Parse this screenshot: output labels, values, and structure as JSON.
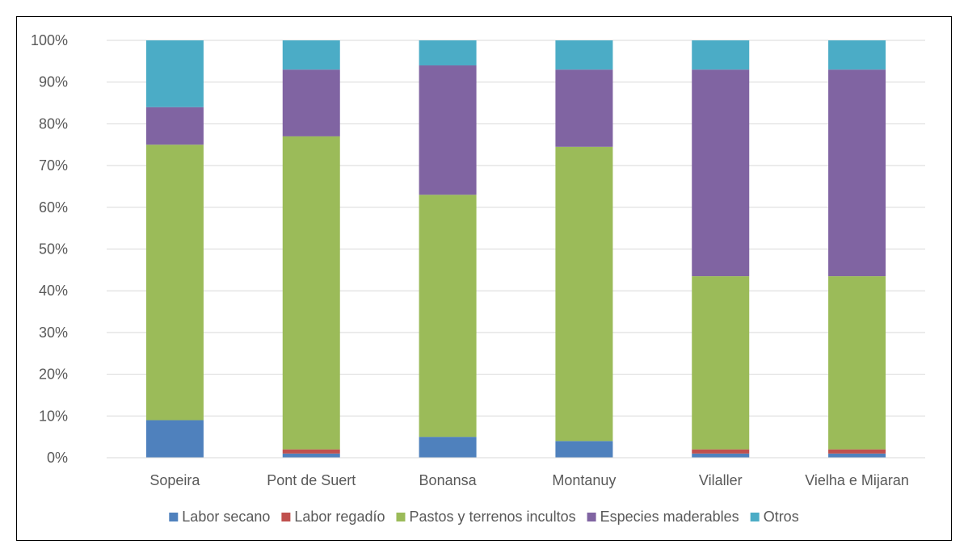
{
  "chart_data": {
    "type": "bar",
    "stacked": true,
    "percent": true,
    "title": "",
    "xlabel": "",
    "ylabel": "",
    "ylim": [
      0,
      100
    ],
    "yticks": [
      "0%",
      "10%",
      "20%",
      "30%",
      "40%",
      "50%",
      "60%",
      "70%",
      "80%",
      "90%",
      "100%"
    ],
    "grid": true,
    "legend_position": "bottom",
    "categories": [
      "Sopeira",
      "Pont de Suert",
      "Bonansa",
      "Montanuy",
      "Vilaller",
      "Vielha e Mijaran"
    ],
    "series": [
      {
        "name": "Labor secano",
        "color": "#4F81BD",
        "values": [
          9.0,
          1.0,
          5.0,
          4.0,
          1.0,
          1.0
        ]
      },
      {
        "name": "Labor regadío",
        "color": "#C0504D",
        "values": [
          0.0,
          1.0,
          0.0,
          0.0,
          1.0,
          1.0
        ]
      },
      {
        "name": "Pastos y terrenos incultos",
        "color": "#9BBB59",
        "values": [
          66.0,
          75.0,
          58.0,
          70.5,
          41.5,
          41.5
        ]
      },
      {
        "name": "Especies maderables",
        "color": "#8064A2",
        "values": [
          9.0,
          16.0,
          31.0,
          18.5,
          49.5,
          49.5
        ]
      },
      {
        "name": "Otros",
        "color": "#4BACC6",
        "values": [
          16.0,
          7.0,
          6.0,
          7.0,
          7.0,
          7.0
        ]
      }
    ]
  }
}
